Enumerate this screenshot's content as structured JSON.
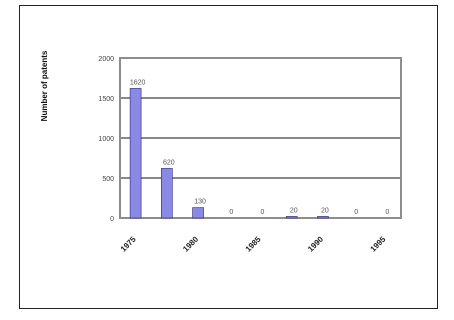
{
  "chart_data": {
    "type": "bar",
    "title": "",
    "xlabel": "",
    "ylabel": "Number of patents",
    "ylim": [
      0,
      2000
    ],
    "yticks": [
      0,
      500,
      1000,
      1500,
      2000
    ],
    "grid": true,
    "legend": "none",
    "bar_color": "#8a8ae6",
    "plot_background": "#ffffff",
    "values": [
      1620,
      620,
      130,
      0,
      0,
      20,
      20,
      0,
      0
    ],
    "data_labels": [
      "1620",
      "620",
      "130",
      "0",
      "0",
      "20",
      "20",
      "0",
      "0"
    ],
    "xtick_labels": [
      "1975",
      "1980",
      "1985",
      "1990",
      "1995"
    ]
  }
}
